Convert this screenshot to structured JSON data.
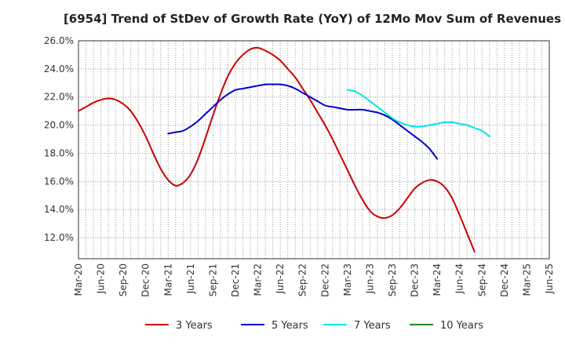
{
  "chart_data": {
    "type": "line",
    "title": "[6954]  Trend of StDev of Growth Rate (YoY) of 12Mo Mov Sum of Revenues",
    "xlabel": "",
    "ylabel": "",
    "x_start": "Mar-20",
    "x_step_months": 1,
    "x_count": 63,
    "xlim": [
      0,
      63
    ],
    "ylim": [
      10.5,
      26.0
    ],
    "x_ticks": [
      {
        "label": "Mar-20",
        "index": 0
      },
      {
        "label": "Jun-20",
        "index": 3
      },
      {
        "label": "Sep-20",
        "index": 6
      },
      {
        "label": "Dec-20",
        "index": 9
      },
      {
        "label": "Mar-21",
        "index": 12
      },
      {
        "label": "Jun-21",
        "index": 15
      },
      {
        "label": "Sep-21",
        "index": 18
      },
      {
        "label": "Dec-21",
        "index": 21
      },
      {
        "label": "Mar-22",
        "index": 24
      },
      {
        "label": "Jun-22",
        "index": 27
      },
      {
        "label": "Sep-22",
        "index": 30
      },
      {
        "label": "Dec-22",
        "index": 33
      },
      {
        "label": "Mar-23",
        "index": 36
      },
      {
        "label": "Jun-23",
        "index": 39
      },
      {
        "label": "Sep-23",
        "index": 42
      },
      {
        "label": "Dec-23",
        "index": 45
      },
      {
        "label": "Mar-24",
        "index": 48
      },
      {
        "label": "Jun-24",
        "index": 51
      },
      {
        "label": "Sep-24",
        "index": 54
      },
      {
        "label": "Dec-24",
        "index": 57
      },
      {
        "label": "Mar-25",
        "index": 60
      },
      {
        "label": "Jun-25",
        "index": 63
      }
    ],
    "y_ticks": [
      {
        "label": "12.0%",
        "value": 12
      },
      {
        "label": "14.0%",
        "value": 14
      },
      {
        "label": "16.0%",
        "value": 16
      },
      {
        "label": "18.0%",
        "value": 18
      },
      {
        "label": "20.0%",
        "value": 20
      },
      {
        "label": "22.0%",
        "value": 22
      },
      {
        "label": "24.0%",
        "value": 24
      },
      {
        "label": "26.0%",
        "value": 26
      }
    ],
    "legend_position": "bottom",
    "grid": true,
    "series": [
      {
        "name": "3 Years",
        "color": "#cc0000",
        "start_index": 0,
        "values": [
          21.0,
          21.3,
          21.6,
          21.8,
          21.9,
          21.8,
          21.5,
          21.0,
          20.2,
          19.2,
          18.0,
          16.9,
          16.1,
          15.7,
          15.9,
          16.5,
          17.6,
          19.1,
          20.7,
          22.2,
          23.5,
          24.4,
          25.0,
          25.4,
          25.5,
          25.3,
          25.0,
          24.6,
          24.0,
          23.4,
          22.6,
          21.8,
          20.9,
          20.0,
          19.0,
          17.9,
          16.8,
          15.7,
          14.7,
          13.9,
          13.5,
          13.4,
          13.6,
          14.1,
          14.8,
          15.5,
          15.9,
          16.1,
          16.0,
          15.6,
          14.8,
          13.6,
          12.3,
          11.0
        ]
      },
      {
        "name": "5 Years",
        "color": "#0000cc",
        "start_index": 12,
        "values": [
          19.4,
          19.5,
          19.6,
          19.9,
          20.3,
          20.8,
          21.3,
          21.8,
          22.2,
          22.5,
          22.6,
          22.7,
          22.8,
          22.9,
          22.9,
          22.9,
          22.8,
          22.6,
          22.3,
          22.0,
          21.7,
          21.4,
          21.3,
          21.2,
          21.1,
          21.1,
          21.1,
          21.0,
          20.9,
          20.7,
          20.4,
          20.0,
          19.6,
          19.2,
          18.8,
          18.3,
          17.6
        ]
      },
      {
        "name": "7 Years",
        "color": "#00e5e5",
        "start_index": 36,
        "values": [
          22.5,
          22.4,
          22.1,
          21.7,
          21.3,
          20.9,
          20.5,
          20.2,
          20.0,
          19.9,
          19.9,
          20.0,
          20.1,
          20.2,
          20.2,
          20.1,
          20.0,
          19.8,
          19.6,
          19.2
        ]
      },
      {
        "name": "10 Years",
        "color": "#228822",
        "start_index": 60,
        "values": []
      }
    ]
  }
}
